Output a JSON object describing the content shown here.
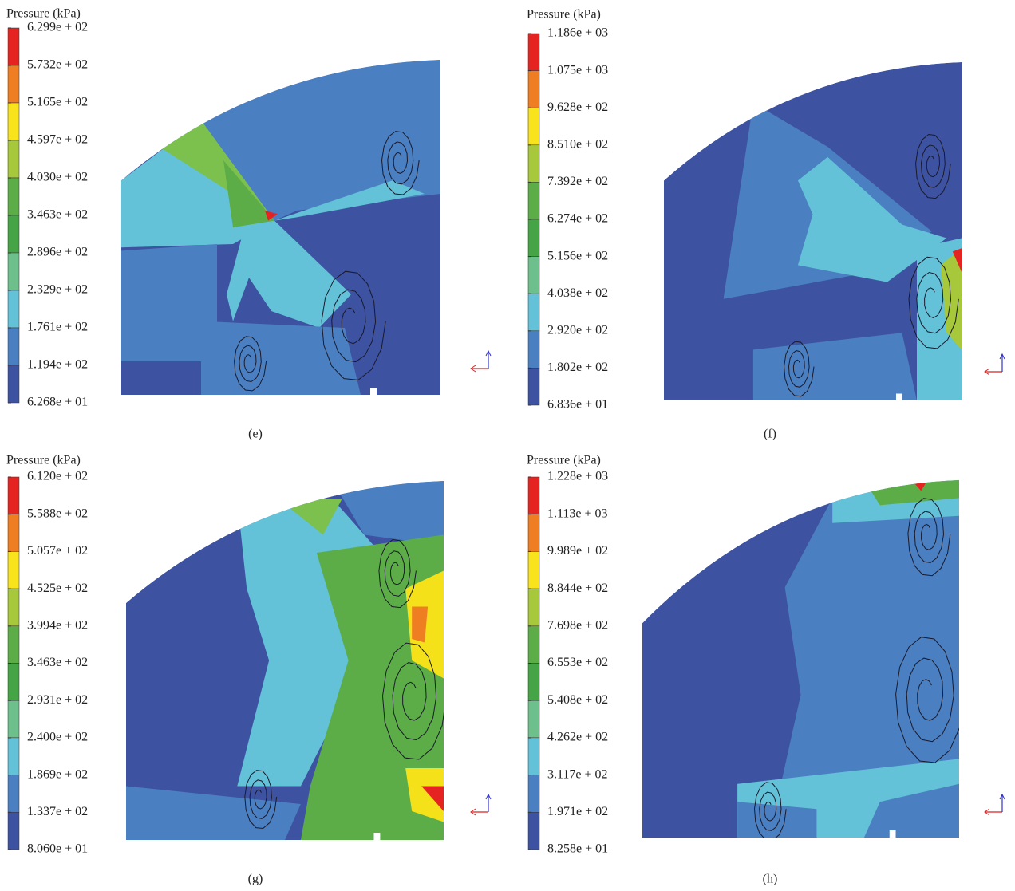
{
  "panels": [
    {
      "legend_title": "Pressure (kPa)",
      "legend_labels": [
        "6.299e + 02",
        "5.732e + 02",
        "5.165e + 02",
        "4.597e + 02",
        "4.030e + 02",
        "3.463e + 02",
        "2.896e + 02",
        "2.329e + 02",
        "1.761e + 02",
        "1.194e + 02",
        "6.268e + 01"
      ],
      "caption": "(e)"
    },
    {
      "legend_title": "Pressure (kPa)",
      "legend_labels": [
        "1.186e + 03",
        "1.075e + 03",
        "9.628e + 02",
        "8.510e + 02",
        "7.392e + 02",
        "6.274e + 02",
        "5.156e + 02",
        "4.038e + 02",
        "2.920e + 02",
        "1.802e + 02",
        "6.836e + 01"
      ],
      "caption": "(f)"
    },
    {
      "legend_title": "Pressure (kPa)",
      "legend_labels": [
        "6.120e + 02",
        "5.588e + 02",
        "5.057e + 02",
        "4.525e + 02",
        "3.994e + 02",
        "3.463e + 02",
        "2.931e + 02",
        "2.400e + 02",
        "1.869e + 02",
        "1.337e + 02",
        "8.060e + 01"
      ],
      "caption": "(g)"
    },
    {
      "legend_title": "Pressure (kPa)",
      "legend_labels": [
        "1.228e + 03",
        "1.113e + 03",
        "9.989e + 02",
        "8.844e + 02",
        "7.698e + 02",
        "6.553e + 02",
        "5.408e + 02",
        "4.262e + 02",
        "3.117e + 02",
        "1.971e + 02",
        "8.258e + 01"
      ],
      "caption": "(h)"
    }
  ]
}
